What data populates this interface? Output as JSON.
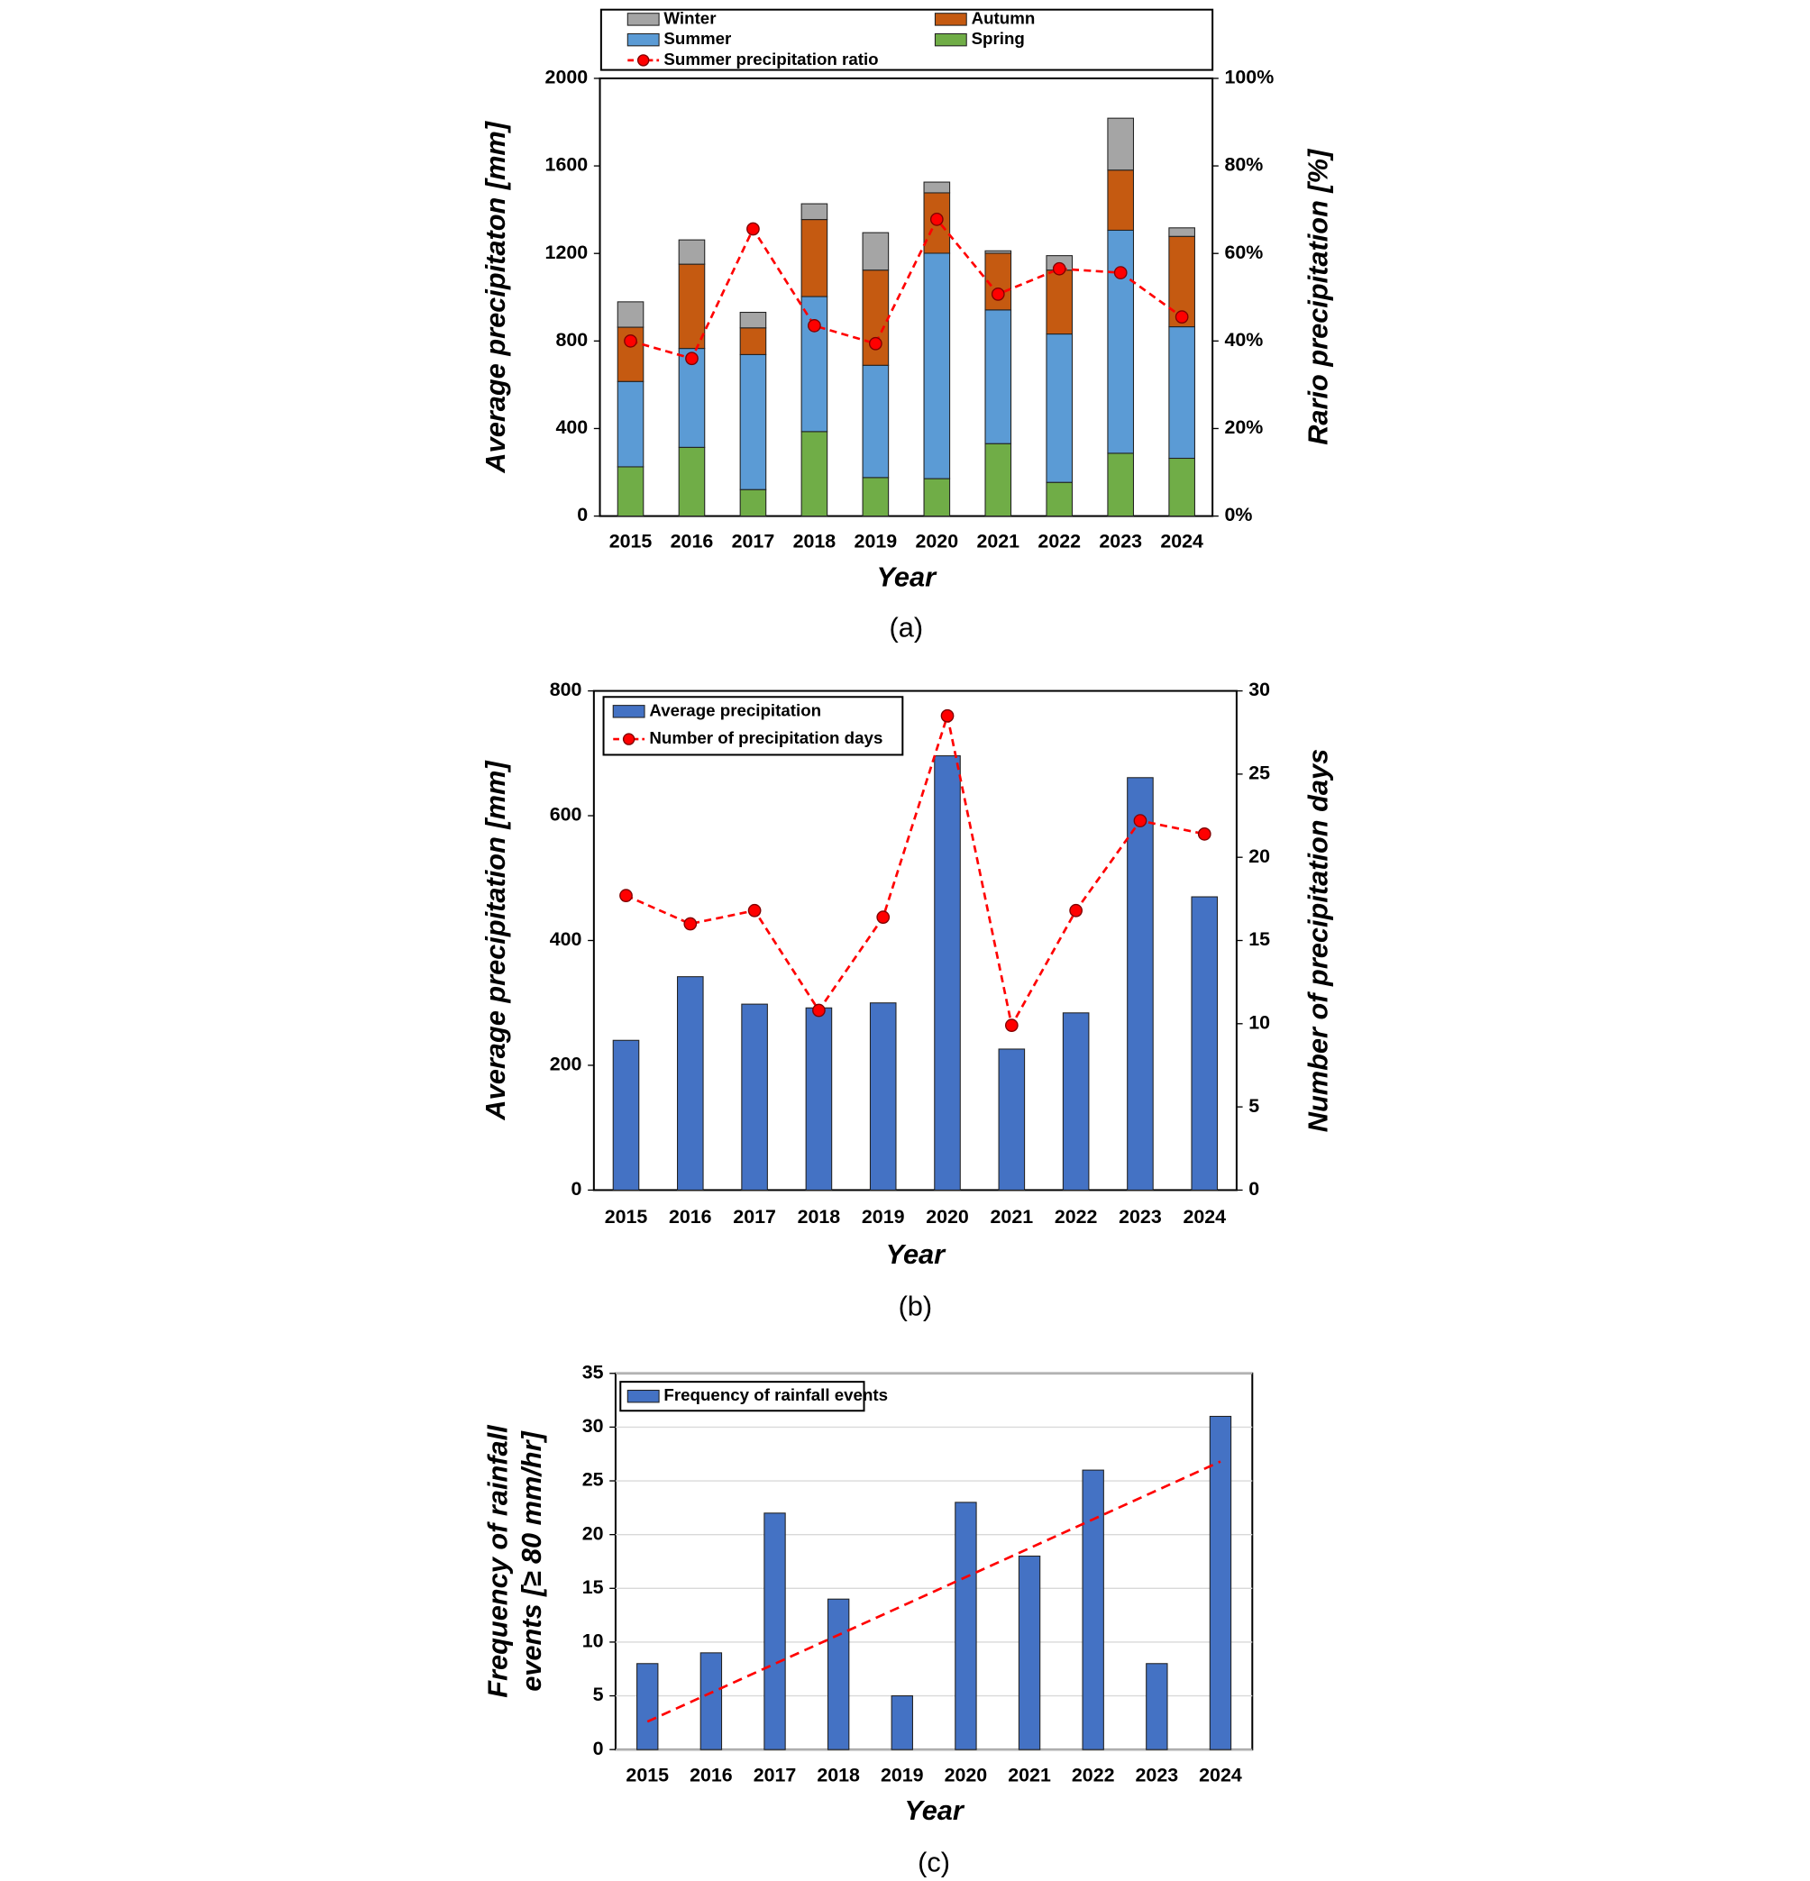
{
  "chart_data": [
    {
      "type": "stacked_bar_line",
      "y_label": "Average precipitaton [mm]",
      "y2_label": "Rario precipitation [%]",
      "x_label": "Year",
      "caption": "(a)",
      "categories": [
        "2015",
        "2016",
        "2017",
        "2018",
        "2019",
        "2020",
        "2021",
        "2022",
        "2023",
        "2024"
      ],
      "series": [
        {
          "name": "Spring",
          "color": "#70ad47",
          "values": [
            225,
            314,
            121,
            386,
            176,
            171,
            331,
            154,
            287,
            264
          ]
        },
        {
          "name": "Summer",
          "color": "#5b9bd5",
          "values": [
            390,
            452,
            617,
            617,
            513,
            1030,
            611,
            678,
            1019,
            601
          ]
        },
        {
          "name": "Autumn",
          "color": "#c55a11",
          "values": [
            248,
            385,
            122,
            352,
            435,
            276,
            259,
            292,
            275,
            413
          ]
        },
        {
          "name": "Winter",
          "color": "#a5a5a5",
          "values": [
            116,
            111,
            71,
            72,
            171,
            49,
            11,
            66,
            237,
            39
          ]
        },
        {
          "name": "Summer precipitation ratio",
          "type": "line",
          "axis": "y2",
          "color": "#ff0000",
          "values": [
            40,
            36,
            65.6,
            43.5,
            39.4,
            67.8,
            50.7,
            56.5,
            55.6,
            45.5
          ]
        }
      ],
      "ylim": [
        0,
        2000
      ],
      "yticks": [
        0,
        400,
        800,
        1200,
        1600,
        2000
      ],
      "y2lim": [
        0,
        100
      ],
      "y2ticks": [
        {
          "value": 0,
          "label": "0%"
        },
        {
          "value": 20,
          "label": "20%"
        },
        {
          "value": 40,
          "label": "40%"
        },
        {
          "value": 60,
          "label": "60%"
        },
        {
          "value": 80,
          "label": "80%"
        },
        {
          "value": 100,
          "label": "100%"
        }
      ]
    },
    {
      "type": "bar_line",
      "y_label": "Average precipitation [mm]",
      "y2_label": "Number of precipitation days",
      "x_label": "Year",
      "caption": "(b)",
      "categories": [
        "2015",
        "2016",
        "2017",
        "2018",
        "2019",
        "2020",
        "2021",
        "2022",
        "2023",
        "2024"
      ],
      "series": [
        {
          "name": "Average precipitation",
          "color": "#4472c4",
          "values": [
            240,
            342,
            298,
            292,
            300,
            696,
            226,
            284,
            661,
            470
          ]
        },
        {
          "name": "Number of precipitation days",
          "type": "line",
          "axis": "y2",
          "color": "#ff0000",
          "values": [
            17.7,
            16.0,
            16.8,
            10.8,
            16.4,
            28.5,
            9.9,
            16.8,
            22.2,
            21.4
          ]
        }
      ],
      "ylim": [
        0,
        800
      ],
      "yticks": [
        0,
        200,
        400,
        600,
        800
      ],
      "y2lim": [
        0,
        30
      ],
      "y2ticks": [
        0,
        5,
        10,
        15,
        20,
        25,
        30
      ]
    },
    {
      "type": "bar",
      "y_label": [
        "Frequency of rainfall",
        "events [≥ 80 mm/hr]"
      ],
      "x_label": "Year",
      "caption": "(c)",
      "categories": [
        "2015",
        "2016",
        "2017",
        "2018",
        "2019",
        "2020",
        "2021",
        "2022",
        "2023",
        "2024"
      ],
      "series": [
        {
          "name": "Frequency of rainfall events",
          "color": "#4472c4",
          "values": [
            8,
            9,
            22,
            14,
            5,
            23,
            18,
            26,
            8,
            31
          ]
        }
      ],
      "trend_line": {
        "color": "#ff0000",
        "values": [
          2.6,
          26.8
        ]
      },
      "ylim": [
        0,
        35
      ],
      "yticks": [
        0,
        5,
        10,
        15,
        20,
        25,
        30,
        35
      ],
      "grid": true
    }
  ]
}
